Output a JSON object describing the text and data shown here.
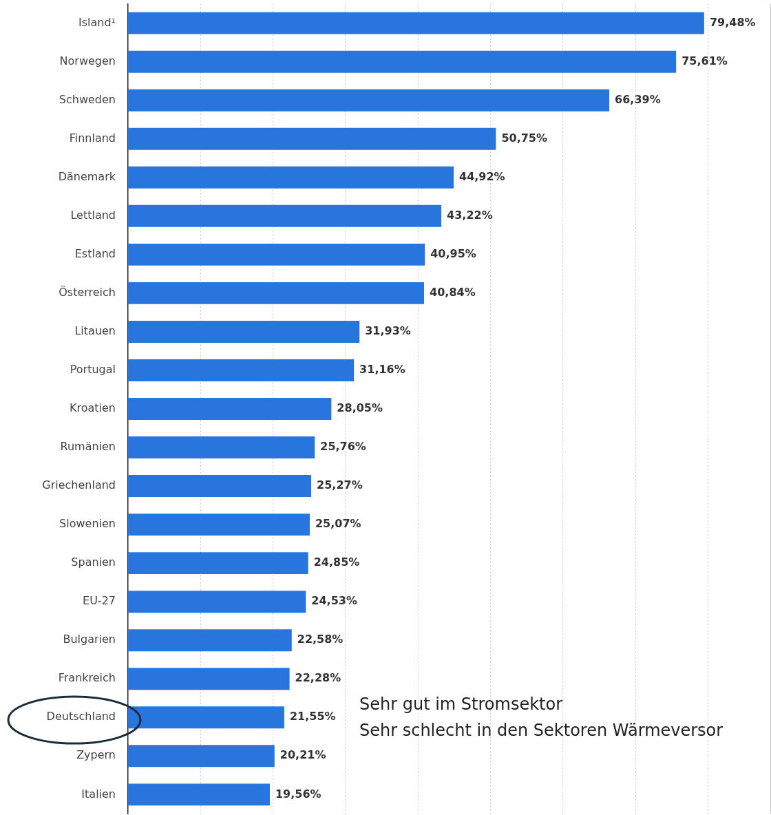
{
  "chart_data": {
    "type": "bar",
    "orientation": "horizontal",
    "categories": [
      "Island¹",
      "Norwegen",
      "Schweden",
      "Finnland",
      "Dänemark",
      "Lettland",
      "Estland",
      "Österreich",
      "Litauen",
      "Portugal",
      "Kroatien",
      "Rumänien",
      "Griechenland",
      "Slowenien",
      "Spanien",
      "EU-27",
      "Bulgarien",
      "Frankreich",
      "Deutschland",
      "Zypern",
      "Italien"
    ],
    "values": [
      79.48,
      75.61,
      66.39,
      50.75,
      44.92,
      43.22,
      40.95,
      40.84,
      31.93,
      31.16,
      28.05,
      25.76,
      25.27,
      25.07,
      24.85,
      24.53,
      22.58,
      22.28,
      21.55,
      20.21,
      19.56
    ],
    "value_labels": [
      "79,48%",
      "75,61%",
      "66,39%",
      "50,75%",
      "44,92%",
      "43,22%",
      "40,95%",
      "40,84%",
      "31,93%",
      "31,16%",
      "28,05%",
      "25,76%",
      "25,27%",
      "25,07%",
      "24,85%",
      "24,53%",
      "22,58%",
      "22,28%",
      "21,55%",
      "20,21%",
      "19,56%"
    ],
    "color": "#2876dd",
    "xlim": [
      0,
      88.7
    ],
    "xticks": [
      {
        "value": 10,
        "label": null
      },
      {
        "value": 20,
        "label": null
      },
      {
        "value": 30,
        "label": null
      },
      {
        "value": 40,
        "label": null
      },
      {
        "value": 50,
        "label": null
      },
      {
        "value": 60,
        "label": null
      },
      {
        "value": 70,
        "label": null
      },
      {
        "value": 80,
        "label": null
      }
    ],
    "tick_labels": "y",
    "grid": "x",
    "legend": false,
    "annotations": [
      "Sehr gut im Stromsektor",
      "Sehr schlecht in den Sektoren Wärmeversor"
    ]
  }
}
